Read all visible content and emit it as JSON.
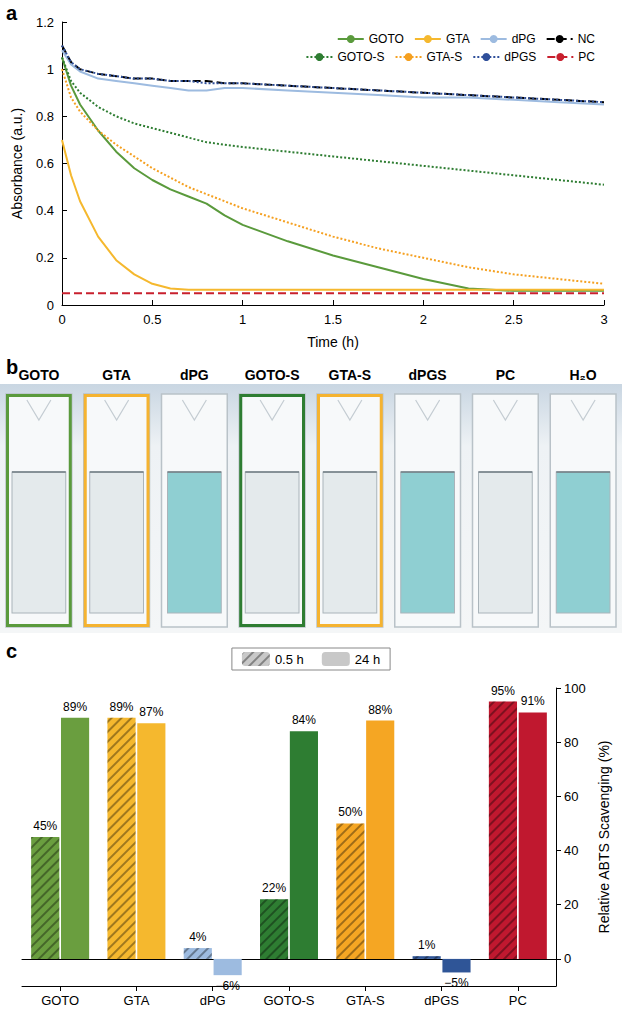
{
  "chart_data": [
    {
      "panel": "a",
      "type": "line",
      "xlabel": "Time (h)",
      "ylabel": "Absorbance (a.u.)",
      "x": [
        0,
        0.05,
        0.1,
        0.2,
        0.3,
        0.4,
        0.5,
        0.6,
        0.7,
        0.8,
        0.9,
        1,
        1.25,
        1.5,
        1.75,
        2,
        2.25,
        2.5,
        2.75,
        3
      ],
      "xlim": [
        0,
        3
      ],
      "xticks": [
        0,
        0.5,
        1,
        1.5,
        2,
        2.5,
        3
      ],
      "ylim": [
        0,
        1.2
      ],
      "yticks": [
        0,
        0.2,
        0.4,
        0.6,
        0.8,
        1,
        1.2
      ],
      "legend": "top-right",
      "series": [
        {
          "name": "GOTO",
          "color": "#5a9a3c",
          "line_style": "solid",
          "values": [
            1.05,
            0.93,
            0.85,
            0.74,
            0.65,
            0.58,
            0.53,
            0.49,
            0.46,
            0.43,
            0.38,
            0.34,
            0.27,
            0.21,
            0.16,
            0.11,
            0.07,
            0.06,
            0.06,
            0.06
          ]
        },
        {
          "name": "GTA",
          "color": "#f5b82e",
          "line_style": "solid",
          "values": [
            0.7,
            0.55,
            0.44,
            0.29,
            0.19,
            0.13,
            0.09,
            0.07,
            0.065,
            0.065,
            0.065,
            0.065,
            0.065,
            0.065,
            0.065,
            0.065,
            0.065,
            0.065,
            0.065,
            0.065
          ]
        },
        {
          "name": "dPG",
          "color": "#9dbbe0",
          "line_style": "solid",
          "values": [
            1.08,
            1.02,
            0.99,
            0.96,
            0.95,
            0.94,
            0.93,
            0.92,
            0.91,
            0.91,
            0.92,
            0.92,
            0.91,
            0.9,
            0.89,
            0.88,
            0.88,
            0.87,
            0.86,
            0.85
          ]
        },
        {
          "name": "NC",
          "color": "#000000",
          "line_style": "dashed",
          "values": [
            1.1,
            1.03,
            1.0,
            0.98,
            0.97,
            0.96,
            0.96,
            0.95,
            0.95,
            0.95,
            0.94,
            0.94,
            0.93,
            0.92,
            0.91,
            0.9,
            0.89,
            0.88,
            0.87,
            0.86
          ]
        },
        {
          "name": "GOTO-S",
          "color": "#2e7d32",
          "line_style": "dotted",
          "values": [
            1.05,
            0.95,
            0.9,
            0.84,
            0.8,
            0.77,
            0.75,
            0.73,
            0.71,
            0.69,
            0.68,
            0.67,
            0.65,
            0.63,
            0.61,
            0.59,
            0.57,
            0.55,
            0.53,
            0.51
          ]
        },
        {
          "name": "GTA-S",
          "color": "#f5a020",
          "line_style": "dotted",
          "values": [
            1.0,
            0.88,
            0.82,
            0.74,
            0.68,
            0.63,
            0.58,
            0.54,
            0.5,
            0.47,
            0.44,
            0.41,
            0.35,
            0.29,
            0.24,
            0.2,
            0.16,
            0.13,
            0.11,
            0.09
          ]
        },
        {
          "name": "dPGS",
          "color": "#2f4f9a",
          "line_style": "dotted",
          "values": [
            1.1,
            1.03,
            1.0,
            0.98,
            0.97,
            0.96,
            0.96,
            0.95,
            0.95,
            0.94,
            0.94,
            0.94,
            0.93,
            0.92,
            0.91,
            0.9,
            0.89,
            0.88,
            0.87,
            0.86
          ]
        },
        {
          "name": "PC",
          "color": "#c8202e",
          "line_style": "dashed",
          "values": [
            0.05,
            0.05,
            0.05,
            0.05,
            0.05,
            0.05,
            0.05,
            0.05,
            0.05,
            0.05,
            0.05,
            0.05,
            0.05,
            0.05,
            0.05,
            0.05,
            0.05,
            0.05,
            0.05,
            0.05
          ]
        }
      ]
    },
    {
      "panel": "c",
      "type": "bar",
      "ylabel": "Relative ABTS Scavenging (%)",
      "categories": [
        "GOTO",
        "GTA",
        "dPG",
        "GOTO-S",
        "GTA-S",
        "dPGS",
        "PC"
      ],
      "ylim": [
        -10,
        100
      ],
      "yticks": [
        0,
        20,
        40,
        60,
        80,
        100
      ],
      "legend": "top",
      "data_labels": true,
      "series": [
        {
          "name": "0.5 h",
          "color": "#c8c8c8",
          "colors": [
            "#6a9e3f",
            "#f5b82e",
            "#9dbbe0",
            "#2e7d32",
            "#f5a623",
            "#2f5597",
            "#c0182f"
          ],
          "values": [
            45,
            89,
            4,
            22,
            50,
            1,
            95
          ],
          "value_labels": [
            "45%",
            "89%",
            "4%",
            "22%",
            "50%",
            "1%",
            "95%"
          ]
        },
        {
          "name": "24 h",
          "color": "#c8c8c8",
          "colors": [
            "#6a9e3f",
            "#f5b82e",
            "#9dbbe0",
            "#2e7d32",
            "#f5a623",
            "#2f5597",
            "#c0182f"
          ],
          "values": [
            89,
            87,
            -6,
            84,
            88,
            -5,
            91
          ],
          "value_labels": [
            "89%",
            "87%",
            "−6%",
            "84%",
            "88%",
            "−5%",
            "91%"
          ]
        }
      ]
    }
  ],
  "photo": {
    "panel": "b",
    "cuvettes": [
      {
        "label": "GOTO",
        "liquid": "#e4eaec",
        "frame": "#5a9a3c"
      },
      {
        "label": "GTA",
        "liquid": "#e4eaec",
        "frame": "#f5b330"
      },
      {
        "label": "dPG",
        "liquid": "#8fcfd2",
        "frame": null
      },
      {
        "label": "GOTO-S",
        "liquid": "#e4eaec",
        "frame": "#2e7d32"
      },
      {
        "label": "GTA-S",
        "liquid": "#e4eaec",
        "frame": "#f5b330"
      },
      {
        "label": "dPGS",
        "liquid": "#8fcfd2",
        "frame": null
      },
      {
        "label": "PC",
        "liquid": "#e4eaec",
        "frame": null
      },
      {
        "label": "H₂O",
        "liquid": "#8fcfd2",
        "frame": null
      }
    ]
  }
}
